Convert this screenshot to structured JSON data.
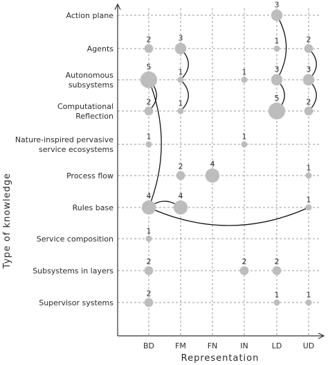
{
  "chart_data": {
    "type": "scatter",
    "xlabel": "Representation",
    "ylabel": "Type of knowledge",
    "x_categories": [
      "BD",
      "FM",
      "FN",
      "IN",
      "LD",
      "UD"
    ],
    "y_categories": [
      "Action plane",
      "Agents",
      "Autonomous subsystems",
      "Computational Reflection",
      "Nature-inspired pervasive service ecosystems",
      "Process flow",
      "Rules base",
      "Service composition",
      "Subsystems in layers",
      "Supervisor systems"
    ],
    "y_tick_lines": [
      [
        "Action plane"
      ],
      [
        "Agents"
      ],
      [
        "Autonomous",
        "subsystems"
      ],
      [
        "Computational",
        "Reflection"
      ],
      [
        "Nature-inspired pervasive",
        "service ecosystems"
      ],
      [
        "Process flow"
      ],
      [
        "Rules base"
      ],
      [
        "Service composition"
      ],
      [
        "Subsystems in layers"
      ],
      [
        "Supervisor systems"
      ]
    ],
    "points": [
      {
        "x": "LD",
        "y": "Action plane",
        "count": 3
      },
      {
        "x": "BD",
        "y": "Agents",
        "count": 2
      },
      {
        "x": "FM",
        "y": "Agents",
        "count": 3
      },
      {
        "x": "LD",
        "y": "Agents",
        "count": 1
      },
      {
        "x": "UD",
        "y": "Agents",
        "count": 2
      },
      {
        "x": "BD",
        "y": "Autonomous subsystems",
        "count": 5
      },
      {
        "x": "FM",
        "y": "Autonomous subsystems",
        "count": 1
      },
      {
        "x": "IN",
        "y": "Autonomous subsystems",
        "count": 1
      },
      {
        "x": "LD",
        "y": "Autonomous subsystems",
        "count": 3
      },
      {
        "x": "UD",
        "y": "Autonomous subsystems",
        "count": 3
      },
      {
        "x": "BD",
        "y": "Computational Reflection",
        "count": 2
      },
      {
        "x": "FM",
        "y": "Computational Reflection",
        "count": 1
      },
      {
        "x": "LD",
        "y": "Computational Reflection",
        "count": 5
      },
      {
        "x": "UD",
        "y": "Computational Reflection",
        "count": 2
      },
      {
        "x": "BD",
        "y": "Nature-inspired pervasive service ecosystems",
        "count": 1
      },
      {
        "x": "IN",
        "y": "Nature-inspired pervasive service ecosystems",
        "count": 1
      },
      {
        "x": "FM",
        "y": "Process flow",
        "count": 2
      },
      {
        "x": "FN",
        "y": "Process flow",
        "count": 4
      },
      {
        "x": "UD",
        "y": "Process flow",
        "count": 1
      },
      {
        "x": "BD",
        "y": "Rules base",
        "count": 4
      },
      {
        "x": "FM",
        "y": "Rules base",
        "count": 4
      },
      {
        "x": "UD",
        "y": "Rules base",
        "count": 1
      },
      {
        "x": "BD",
        "y": "Service composition",
        "count": 1
      },
      {
        "x": "BD",
        "y": "Subsystems in layers",
        "count": 2
      },
      {
        "x": "IN",
        "y": "Subsystems in layers",
        "count": 2
      },
      {
        "x": "LD",
        "y": "Subsystems in layers",
        "count": 2
      },
      {
        "x": "BD",
        "y": "Supervisor systems",
        "count": 2
      },
      {
        "x": "LD",
        "y": "Supervisor systems",
        "count": 1
      },
      {
        "x": "UD",
        "y": "Supervisor systems",
        "count": 1
      }
    ],
    "links": [
      {
        "from": {
          "x": "LD",
          "y": "Action plane"
        },
        "to": {
          "x": "LD",
          "y": "Autonomous subsystems"
        }
      },
      {
        "from": {
          "x": "FM",
          "y": "Agents"
        },
        "to": {
          "x": "FM",
          "y": "Autonomous subsystems"
        }
      },
      {
        "from": {
          "x": "UD",
          "y": "Agents"
        },
        "to": {
          "x": "UD",
          "y": "Autonomous subsystems"
        }
      },
      {
        "from": {
          "x": "BD",
          "y": "Autonomous subsystems"
        },
        "to": {
          "x": "BD",
          "y": "Computational Reflection"
        }
      },
      {
        "from": {
          "x": "BD",
          "y": "Autonomous subsystems"
        },
        "to": {
          "x": "BD",
          "y": "Rules base"
        }
      },
      {
        "from": {
          "x": "FM",
          "y": "Autonomous subsystems"
        },
        "to": {
          "x": "FM",
          "y": "Computational Reflection"
        }
      },
      {
        "from": {
          "x": "LD",
          "y": "Autonomous subsystems"
        },
        "to": {
          "x": "LD",
          "y": "Computational Reflection"
        }
      },
      {
        "from": {
          "x": "UD",
          "y": "Autonomous subsystems"
        },
        "to": {
          "x": "UD",
          "y": "Computational Reflection"
        }
      },
      {
        "from": {
          "x": "BD",
          "y": "Rules base"
        },
        "to": {
          "x": "FM",
          "y": "Rules base"
        }
      },
      {
        "from": {
          "x": "BD",
          "y": "Rules base"
        },
        "to": {
          "x": "UD",
          "y": "Rules base"
        }
      }
    ],
    "grid": true,
    "legend": "none"
  }
}
